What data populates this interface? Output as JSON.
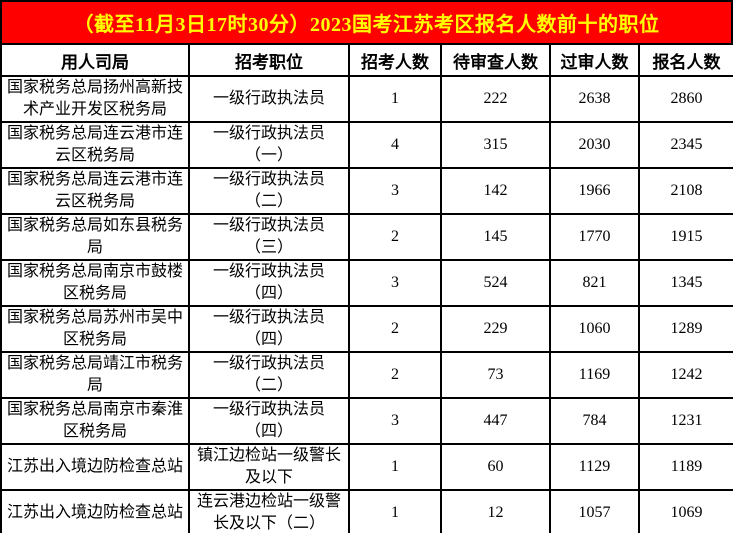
{
  "title": "（截至11月3日17时30分）2023国考江苏考区报名人数前十的职位",
  "colors": {
    "banner_bg": "#FF0000",
    "banner_text": "#FFFF00",
    "border": "#000000",
    "cell_bg": "#FFFFFF",
    "cell_text": "#000000"
  },
  "table": {
    "headers": [
      "用人司局",
      "招考职位",
      "招考人数",
      "待审查人数",
      "过审人数",
      "报名人数"
    ],
    "rows": [
      {
        "dept": "国家税务总局扬州高新技\n术产业开发区税务局",
        "position": "一级行政执法员",
        "recruit": "1",
        "pending": "222",
        "passed": "2638",
        "registered": "2860"
      },
      {
        "dept": "国家税务总局连云港市连\n云区税务局",
        "position": "一级行政执法员\n（一）",
        "recruit": "4",
        "pending": "315",
        "passed": "2030",
        "registered": "2345"
      },
      {
        "dept": "国家税务总局连云港市连\n云区税务局",
        "position": "一级行政执法员\n（二）",
        "recruit": "3",
        "pending": "142",
        "passed": "1966",
        "registered": "2108"
      },
      {
        "dept": "国家税务总局如东县税务\n局",
        "position": "一级行政执法员\n（三）",
        "recruit": "2",
        "pending": "145",
        "passed": "1770",
        "registered": "1915"
      },
      {
        "dept": "国家税务总局南京市鼓楼\n区税务局",
        "position": "一级行政执法员\n（四）",
        "recruit": "3",
        "pending": "524",
        "passed": "821",
        "registered": "1345"
      },
      {
        "dept": "国家税务总局苏州市吴中\n区税务局",
        "position": "一级行政执法员\n（四）",
        "recruit": "2",
        "pending": "229",
        "passed": "1060",
        "registered": "1289"
      },
      {
        "dept": "国家税务总局靖江市税务\n局",
        "position": "一级行政执法员\n（二）",
        "recruit": "2",
        "pending": "73",
        "passed": "1169",
        "registered": "1242"
      },
      {
        "dept": "国家税务总局南京市秦淮\n区税务局",
        "position": "一级行政执法员\n（四）",
        "recruit": "3",
        "pending": "447",
        "passed": "784",
        "registered": "1231"
      },
      {
        "dept": "江苏出入境边防检查总站",
        "position": "镇江边检站一级警长\n及以下",
        "recruit": "1",
        "pending": "60",
        "passed": "1129",
        "registered": "1189"
      },
      {
        "dept": "江苏出入境边防检查总站",
        "position": "连云港边检站一级警\n长及以下（二）",
        "recruit": "1",
        "pending": "12",
        "passed": "1057",
        "registered": "1069"
      }
    ]
  },
  "chart_data": {
    "type": "table",
    "title": "（截至11月3日17时30分）2023国考江苏考区报名人数前十的职位",
    "columns": [
      "用人司局",
      "招考职位",
      "招考人数",
      "待审查人数",
      "过审人数",
      "报名人数"
    ],
    "rows": [
      [
        "国家税务总局扬州高新技术产业开发区税务局",
        "一级行政执法员",
        1,
        222,
        2638,
        2860
      ],
      [
        "国家税务总局连云港市连云区税务局",
        "一级行政执法员（一）",
        4,
        315,
        2030,
        2345
      ],
      [
        "国家税务总局连云港市连云区税务局",
        "一级行政执法员（二）",
        3,
        142,
        1966,
        2108
      ],
      [
        "国家税务总局如东县税务局",
        "一级行政执法员（三）",
        2,
        145,
        1770,
        1915
      ],
      [
        "国家税务总局南京市鼓楼区税务局",
        "一级行政执法员（四）",
        3,
        524,
        821,
        1345
      ],
      [
        "国家税务总局苏州市吴中区税务局",
        "一级行政执法员（四）",
        2,
        229,
        1060,
        1289
      ],
      [
        "国家税务总局靖江市税务局",
        "一级行政执法员（二）",
        2,
        73,
        1169,
        1242
      ],
      [
        "国家税务总局南京市秦淮区税务局",
        "一级行政执法员（四）",
        3,
        447,
        784,
        1231
      ],
      [
        "江苏出入境边防检查总站",
        "镇江边检站一级警长及以下",
        1,
        60,
        1129,
        1189
      ],
      [
        "江苏出入境边防检查总站",
        "连云港边检站一级警长及以下（二）",
        1,
        12,
        1057,
        1069
      ]
    ]
  }
}
